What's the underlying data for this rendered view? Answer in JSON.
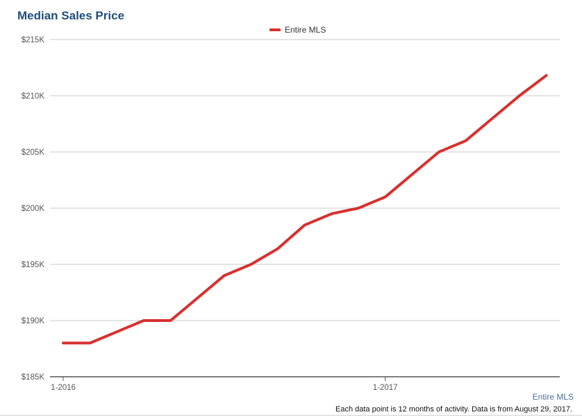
{
  "chart_data": {
    "type": "line",
    "title": "Median Sales Price",
    "legend": "Entire MLS",
    "legend_position": "top-center",
    "series": [
      {
        "name": "Entire MLS",
        "color": "#d7312e",
        "values": [
          188000,
          188000,
          189000,
          190000,
          190000,
          192000,
          194000,
          195000,
          196400,
          198500,
          199500,
          200000,
          201000,
          203000,
          205000,
          206000,
          208000,
          210000,
          211800
        ]
      }
    ],
    "x_ticks": [
      {
        "index": 0,
        "label": "1-2016"
      },
      {
        "index": 12,
        "label": "1-2017"
      }
    ],
    "y_ticks": [
      185000,
      190000,
      195000,
      200000,
      205000,
      210000,
      215000
    ],
    "y_tick_labels": [
      "$185K",
      "$190K",
      "$195K",
      "$200K",
      "$205K",
      "$210K",
      "$215K"
    ],
    "ylim": [
      185000,
      215000
    ],
    "grid": true,
    "source_label": "Entire MLS",
    "footnote": "Each data point is 12 months of activity. Data is from August 29, 2017."
  }
}
